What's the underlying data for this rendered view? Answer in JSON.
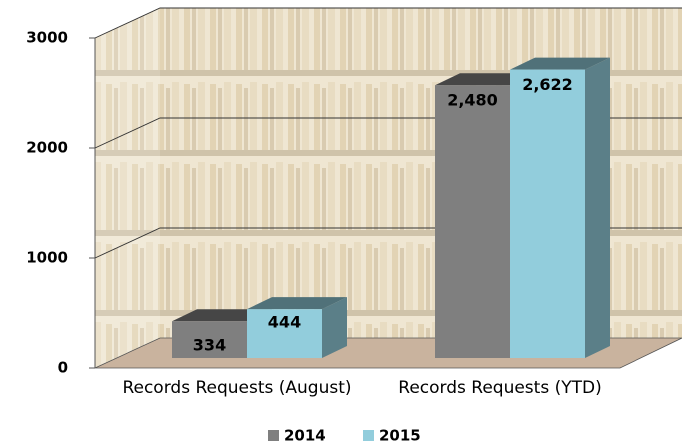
{
  "chart_data": {
    "type": "bar3d",
    "categories": [
      "Records Requests (August)",
      "Records Requests (YTD)"
    ],
    "series": [
      {
        "name": "2014",
        "color": "#7f7f7f",
        "values": [
          334,
          2480
        ],
        "value_labels": [
          "334",
          "2,480"
        ]
      },
      {
        "name": "2015",
        "color": "#92cddc",
        "values": [
          444,
          2622
        ],
        "value_labels": [
          "444",
          "2,622"
        ]
      }
    ],
    "ylim": [
      0,
      3000
    ],
    "yticks": [
      0,
      1000,
      2000,
      3000
    ],
    "grid": true,
    "legend": "bottom"
  }
}
